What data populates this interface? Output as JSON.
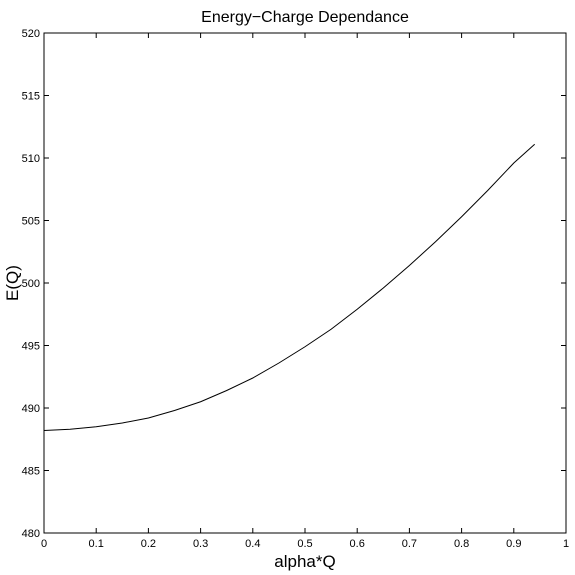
{
  "chart_data": {
    "type": "line",
    "title": "Energy−Charge Dependance",
    "xlabel": "alpha*Q",
    "ylabel": "E(Q)",
    "xlim": [
      0,
      1
    ],
    "ylim": [
      480,
      520
    ],
    "xticks": [
      0,
      0.1,
      0.2,
      0.3,
      0.4,
      0.5,
      0.6,
      0.7,
      0.8,
      0.9,
      1
    ],
    "xtick_labels": [
      "0",
      "0.1",
      "0.2",
      "0.3",
      "0.4",
      "0.5",
      "0.6",
      "0.7",
      "0.8",
      "0.9",
      "1"
    ],
    "yticks": [
      480,
      485,
      490,
      495,
      500,
      505,
      510,
      515,
      520
    ],
    "ytick_labels": [
      "480",
      "485",
      "490",
      "495",
      "500",
      "505",
      "510",
      "515",
      "520"
    ],
    "grid": false,
    "line_color": "#000000",
    "series": [
      {
        "x": [
          0,
          0.05,
          0.1,
          0.15,
          0.2,
          0.25,
          0.3,
          0.35,
          0.4,
          0.45,
          0.5,
          0.55,
          0.6,
          0.65,
          0.7,
          0.75,
          0.8,
          0.85,
          0.9,
          0.94
        ],
        "values": [
          488.2,
          488.3,
          488.5,
          488.8,
          489.2,
          489.8,
          490.5,
          491.4,
          492.4,
          493.6,
          494.9,
          496.3,
          497.9,
          499.6,
          501.4,
          503.3,
          505.3,
          507.4,
          509.6,
          511.1
        ]
      }
    ]
  }
}
